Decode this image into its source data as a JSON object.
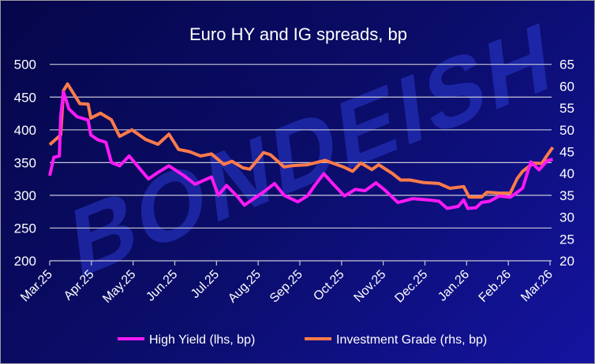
{
  "chart_data": {
    "type": "line",
    "title": "Euro HY and IG spreads, bp",
    "xlabel": "",
    "ylabel": "",
    "x_tick_labels": [
      "Mar.25",
      "Apr.25",
      "May.25",
      "Jun.25",
      "Jul.25",
      "Aug.25",
      "Sep.25",
      "Oct.25",
      "Nov.25",
      "Dec.25",
      "Jan.26",
      "Feb.26",
      "Mar.26"
    ],
    "y_left": {
      "ylim": [
        200,
        500
      ],
      "ticks": [
        200,
        250,
        300,
        350,
        400,
        450,
        500
      ]
    },
    "y_right": {
      "ylim": [
        20,
        65
      ],
      "ticks": [
        20,
        25,
        30,
        35,
        40,
        45,
        50,
        55,
        60,
        65
      ]
    },
    "grid": true,
    "legend_position": "bottom",
    "watermark": "BONDEISH",
    "series": [
      {
        "name": "High Yield (lhs, bp)",
        "axis": "left",
        "color": "#ff19f5",
        "points": [
          [
            "2025-03-28",
            330
          ],
          [
            "2025-03-31",
            358
          ],
          [
            "2025-04-04",
            360
          ],
          [
            "2025-04-05",
            420
          ],
          [
            "2025-04-07",
            458
          ],
          [
            "2025-04-11",
            432
          ],
          [
            "2025-04-17",
            420
          ],
          [
            "2025-04-25",
            415
          ],
          [
            "2025-04-27",
            392
          ],
          [
            "2025-05-02",
            385
          ],
          [
            "2025-05-08",
            381
          ],
          [
            "2025-05-12",
            350
          ],
          [
            "2025-05-18",
            345
          ],
          [
            "2025-05-25",
            360
          ],
          [
            "2025-06-02",
            340
          ],
          [
            "2025-06-08",
            325
          ],
          [
            "2025-06-15",
            335
          ],
          [
            "2025-06-23",
            345
          ],
          [
            "2025-07-04",
            330
          ],
          [
            "2025-07-12",
            317
          ],
          [
            "2025-07-24",
            328
          ],
          [
            "2025-07-29",
            300
          ],
          [
            "2025-08-04",
            315
          ],
          [
            "2025-08-12",
            298
          ],
          [
            "2025-08-17",
            285
          ],
          [
            "2025-08-31",
            305
          ],
          [
            "2025-09-08",
            318
          ],
          [
            "2025-09-15",
            300
          ],
          [
            "2025-09-25",
            290
          ],
          [
            "2025-10-02",
            299
          ],
          [
            "2025-10-08",
            317
          ],
          [
            "2025-10-14",
            333
          ],
          [
            "2025-10-20",
            319
          ],
          [
            "2025-10-29",
            299
          ],
          [
            "2025-11-06",
            309
          ],
          [
            "2025-11-13",
            307
          ],
          [
            "2025-11-21",
            319
          ],
          [
            "2025-11-27",
            309
          ],
          [
            "2025-12-07",
            289
          ],
          [
            "2025-12-18",
            295
          ],
          [
            "2025-12-29",
            293
          ],
          [
            "2026-01-06",
            291
          ],
          [
            "2026-01-12",
            280
          ],
          [
            "2026-01-20",
            283
          ],
          [
            "2026-01-24",
            293
          ],
          [
            "2026-01-27",
            280
          ],
          [
            "2026-02-02",
            281
          ],
          [
            "2026-02-06",
            289
          ],
          [
            "2026-02-12",
            291
          ],
          [
            "2026-02-19",
            299
          ],
          [
            "2026-02-27",
            297
          ],
          [
            "2026-03-03",
            303
          ],
          [
            "2026-03-08",
            311
          ],
          [
            "2026-03-14",
            351
          ],
          [
            "2026-03-20",
            339
          ],
          [
            "2026-03-26",
            353
          ],
          [
            "2026-03-30",
            355
          ]
        ]
      },
      {
        "name": "Investment Grade (rhs, bp)",
        "axis": "right",
        "color": "#ff7b4a",
        "points": [
          [
            "2025-03-28",
            46.6
          ],
          [
            "2025-04-05",
            48.8
          ],
          [
            "2025-04-07",
            59
          ],
          [
            "2025-04-10",
            60.5
          ],
          [
            "2025-04-19",
            56
          ],
          [
            "2025-04-25",
            55.9
          ],
          [
            "2025-04-27",
            52.7
          ],
          [
            "2025-05-04",
            53.8
          ],
          [
            "2025-05-12",
            52.3
          ],
          [
            "2025-05-18",
            48.5
          ],
          [
            "2025-05-27",
            50
          ],
          [
            "2025-06-06",
            47.8
          ],
          [
            "2025-06-15",
            46.7
          ],
          [
            "2025-06-23",
            49
          ],
          [
            "2025-06-30",
            45.5
          ],
          [
            "2025-07-08",
            45
          ],
          [
            "2025-07-16",
            44
          ],
          [
            "2025-07-24",
            44.5
          ],
          [
            "2025-08-02",
            42.1
          ],
          [
            "2025-08-08",
            42.8
          ],
          [
            "2025-08-16",
            41.3
          ],
          [
            "2025-08-21",
            41
          ],
          [
            "2025-08-31",
            44.8
          ],
          [
            "2025-09-05",
            44.3
          ],
          [
            "2025-09-15",
            41.5
          ],
          [
            "2025-09-21",
            41.8
          ],
          [
            "2025-10-02",
            42
          ],
          [
            "2025-10-15",
            43
          ],
          [
            "2025-10-29",
            41.4
          ],
          [
            "2025-11-04",
            40.5
          ],
          [
            "2025-11-10",
            42.4
          ],
          [
            "2025-11-18",
            40.9
          ],
          [
            "2025-11-23",
            42
          ],
          [
            "2025-12-03",
            40
          ],
          [
            "2025-12-09",
            38.5
          ],
          [
            "2025-12-16",
            38.5
          ],
          [
            "2025-12-26",
            37.9
          ],
          [
            "2026-01-06",
            37.7
          ],
          [
            "2026-01-14",
            36.6
          ],
          [
            "2026-01-24",
            37
          ],
          [
            "2026-01-28",
            34.6
          ],
          [
            "2026-02-06",
            34.6
          ],
          [
            "2026-02-10",
            35.7
          ],
          [
            "2026-02-19",
            35.5
          ],
          [
            "2026-02-27",
            35.5
          ],
          [
            "2026-03-04",
            38.8
          ],
          [
            "2026-03-08",
            40.5
          ],
          [
            "2026-03-16",
            42.4
          ],
          [
            "2026-03-22",
            42.3
          ],
          [
            "2026-03-26",
            44.2
          ],
          [
            "2026-03-30",
            46
          ]
        ]
      }
    ]
  }
}
